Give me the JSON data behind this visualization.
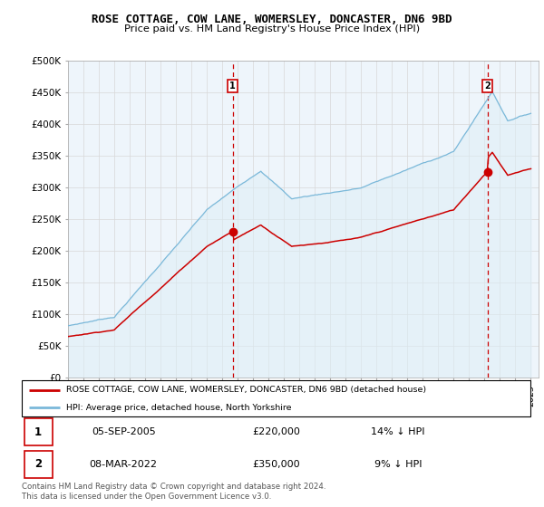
{
  "title": "ROSE COTTAGE, COW LANE, WOMERSLEY, DONCASTER, DN6 9BD",
  "subtitle": "Price paid vs. HM Land Registry's House Price Index (HPI)",
  "ylabel_ticks": [
    "£0",
    "£50K",
    "£100K",
    "£150K",
    "£200K",
    "£250K",
    "£300K",
    "£350K",
    "£400K",
    "£450K",
    "£500K"
  ],
  "ytick_values": [
    0,
    50000,
    100000,
    150000,
    200000,
    250000,
    300000,
    350000,
    400000,
    450000,
    500000
  ],
  "ylim": [
    0,
    500000
  ],
  "xlim_start": 1995.0,
  "xlim_end": 2025.5,
  "sale1_x": 2005.68,
  "sale1_y": 220000,
  "sale1_label": "1",
  "sale2_x": 2022.18,
  "sale2_y": 350000,
  "sale2_label": "2",
  "legend_line1": "ROSE COTTAGE, COW LANE, WOMERSLEY, DONCASTER, DN6 9BD (detached house)",
  "legend_line2": "HPI: Average price, detached house, North Yorkshire",
  "table_row1": [
    "1",
    "05-SEP-2005",
    "£220,000",
    "14% ↓ HPI"
  ],
  "table_row2": [
    "2",
    "08-MAR-2022",
    "£350,000",
    "9% ↓ HPI"
  ],
  "footer": "Contains HM Land Registry data © Crown copyright and database right 2024.\nThis data is licensed under the Open Government Licence v3.0.",
  "hpi_color": "#7ab8d9",
  "hpi_fill_color": "#ddeef7",
  "sale_color": "#cc0000",
  "dashed_color": "#cc0000",
  "background_color": "#ffffff",
  "grid_color": "#d8d8d8"
}
